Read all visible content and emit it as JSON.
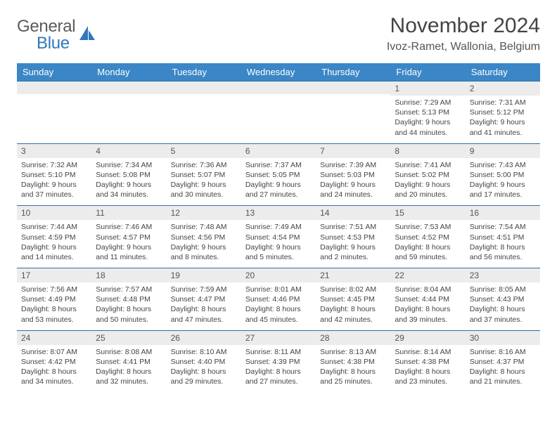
{
  "logo": {
    "text1": "General",
    "text2": "Blue",
    "icon_color": "#2f78bd"
  },
  "title": "November 2024",
  "location": "Ivoz-Ramet, Wallonia, Belgium",
  "header_bg": "#3b86c6",
  "daynum_bg": "#ececec",
  "border_color": "#2f6ea8",
  "weekdays": [
    "Sunday",
    "Monday",
    "Tuesday",
    "Wednesday",
    "Thursday",
    "Friday",
    "Saturday"
  ],
  "weeks": [
    [
      {
        "n": "",
        "lines": []
      },
      {
        "n": "",
        "lines": []
      },
      {
        "n": "",
        "lines": []
      },
      {
        "n": "",
        "lines": []
      },
      {
        "n": "",
        "lines": []
      },
      {
        "n": "1",
        "lines": [
          "Sunrise: 7:29 AM",
          "Sunset: 5:13 PM",
          "Daylight: 9 hours",
          "and 44 minutes."
        ]
      },
      {
        "n": "2",
        "lines": [
          "Sunrise: 7:31 AM",
          "Sunset: 5:12 PM",
          "Daylight: 9 hours",
          "and 41 minutes."
        ]
      }
    ],
    [
      {
        "n": "3",
        "lines": [
          "Sunrise: 7:32 AM",
          "Sunset: 5:10 PM",
          "Daylight: 9 hours",
          "and 37 minutes."
        ]
      },
      {
        "n": "4",
        "lines": [
          "Sunrise: 7:34 AM",
          "Sunset: 5:08 PM",
          "Daylight: 9 hours",
          "and 34 minutes."
        ]
      },
      {
        "n": "5",
        "lines": [
          "Sunrise: 7:36 AM",
          "Sunset: 5:07 PM",
          "Daylight: 9 hours",
          "and 30 minutes."
        ]
      },
      {
        "n": "6",
        "lines": [
          "Sunrise: 7:37 AM",
          "Sunset: 5:05 PM",
          "Daylight: 9 hours",
          "and 27 minutes."
        ]
      },
      {
        "n": "7",
        "lines": [
          "Sunrise: 7:39 AM",
          "Sunset: 5:03 PM",
          "Daylight: 9 hours",
          "and 24 minutes."
        ]
      },
      {
        "n": "8",
        "lines": [
          "Sunrise: 7:41 AM",
          "Sunset: 5:02 PM",
          "Daylight: 9 hours",
          "and 20 minutes."
        ]
      },
      {
        "n": "9",
        "lines": [
          "Sunrise: 7:43 AM",
          "Sunset: 5:00 PM",
          "Daylight: 9 hours",
          "and 17 minutes."
        ]
      }
    ],
    [
      {
        "n": "10",
        "lines": [
          "Sunrise: 7:44 AM",
          "Sunset: 4:59 PM",
          "Daylight: 9 hours",
          "and 14 minutes."
        ]
      },
      {
        "n": "11",
        "lines": [
          "Sunrise: 7:46 AM",
          "Sunset: 4:57 PM",
          "Daylight: 9 hours",
          "and 11 minutes."
        ]
      },
      {
        "n": "12",
        "lines": [
          "Sunrise: 7:48 AM",
          "Sunset: 4:56 PM",
          "Daylight: 9 hours",
          "and 8 minutes."
        ]
      },
      {
        "n": "13",
        "lines": [
          "Sunrise: 7:49 AM",
          "Sunset: 4:54 PM",
          "Daylight: 9 hours",
          "and 5 minutes."
        ]
      },
      {
        "n": "14",
        "lines": [
          "Sunrise: 7:51 AM",
          "Sunset: 4:53 PM",
          "Daylight: 9 hours",
          "and 2 minutes."
        ]
      },
      {
        "n": "15",
        "lines": [
          "Sunrise: 7:53 AM",
          "Sunset: 4:52 PM",
          "Daylight: 8 hours",
          "and 59 minutes."
        ]
      },
      {
        "n": "16",
        "lines": [
          "Sunrise: 7:54 AM",
          "Sunset: 4:51 PM",
          "Daylight: 8 hours",
          "and 56 minutes."
        ]
      }
    ],
    [
      {
        "n": "17",
        "lines": [
          "Sunrise: 7:56 AM",
          "Sunset: 4:49 PM",
          "Daylight: 8 hours",
          "and 53 minutes."
        ]
      },
      {
        "n": "18",
        "lines": [
          "Sunrise: 7:57 AM",
          "Sunset: 4:48 PM",
          "Daylight: 8 hours",
          "and 50 minutes."
        ]
      },
      {
        "n": "19",
        "lines": [
          "Sunrise: 7:59 AM",
          "Sunset: 4:47 PM",
          "Daylight: 8 hours",
          "and 47 minutes."
        ]
      },
      {
        "n": "20",
        "lines": [
          "Sunrise: 8:01 AM",
          "Sunset: 4:46 PM",
          "Daylight: 8 hours",
          "and 45 minutes."
        ]
      },
      {
        "n": "21",
        "lines": [
          "Sunrise: 8:02 AM",
          "Sunset: 4:45 PM",
          "Daylight: 8 hours",
          "and 42 minutes."
        ]
      },
      {
        "n": "22",
        "lines": [
          "Sunrise: 8:04 AM",
          "Sunset: 4:44 PM",
          "Daylight: 8 hours",
          "and 39 minutes."
        ]
      },
      {
        "n": "23",
        "lines": [
          "Sunrise: 8:05 AM",
          "Sunset: 4:43 PM",
          "Daylight: 8 hours",
          "and 37 minutes."
        ]
      }
    ],
    [
      {
        "n": "24",
        "lines": [
          "Sunrise: 8:07 AM",
          "Sunset: 4:42 PM",
          "Daylight: 8 hours",
          "and 34 minutes."
        ]
      },
      {
        "n": "25",
        "lines": [
          "Sunrise: 8:08 AM",
          "Sunset: 4:41 PM",
          "Daylight: 8 hours",
          "and 32 minutes."
        ]
      },
      {
        "n": "26",
        "lines": [
          "Sunrise: 8:10 AM",
          "Sunset: 4:40 PM",
          "Daylight: 8 hours",
          "and 29 minutes."
        ]
      },
      {
        "n": "27",
        "lines": [
          "Sunrise: 8:11 AM",
          "Sunset: 4:39 PM",
          "Daylight: 8 hours",
          "and 27 minutes."
        ]
      },
      {
        "n": "28",
        "lines": [
          "Sunrise: 8:13 AM",
          "Sunset: 4:38 PM",
          "Daylight: 8 hours",
          "and 25 minutes."
        ]
      },
      {
        "n": "29",
        "lines": [
          "Sunrise: 8:14 AM",
          "Sunset: 4:38 PM",
          "Daylight: 8 hours",
          "and 23 minutes."
        ]
      },
      {
        "n": "30",
        "lines": [
          "Sunrise: 8:16 AM",
          "Sunset: 4:37 PM",
          "Daylight: 8 hours",
          "and 21 minutes."
        ]
      }
    ]
  ]
}
